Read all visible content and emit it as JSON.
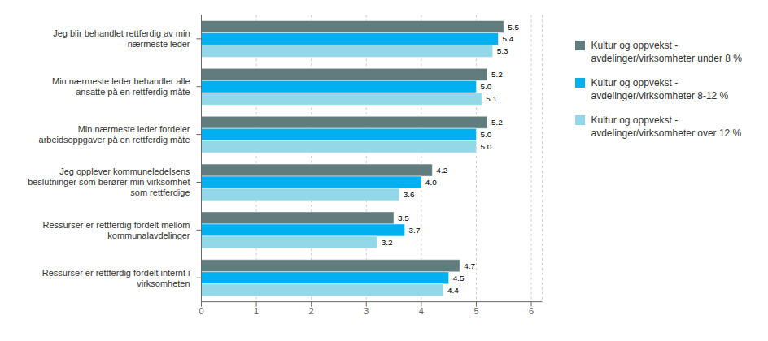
{
  "chart_data": {
    "type": "bar",
    "orientation": "horizontal",
    "categories": [
      "Jeg blir behandlet rettferdig av min\nnærmeste leder",
      "Min nærmeste leder behandler alle\nansatte på en rettferdig måte",
      "Min nærmeste leder fordeler\narbeidsoppgaver på en rettferdig måte",
      "Jeg opplever kommuneledelsens\nbeslutninger som berører min virksomhet\nsom rettferdige",
      "Ressurser er rettferdig fordelt mellom\nkommunalavdelinger",
      "Ressurser er rettferdig fordelt internt i\nvirksomheten"
    ],
    "series": [
      {
        "name": "Kultur og oppvekst -\navdelinger/virksomheter under 8 %",
        "color": "#607c7c",
        "values": [
          5.5,
          5.2,
          5.2,
          4.2,
          3.5,
          4.7
        ],
        "value_labels": [
          "5.5",
          "5.2",
          "5.2",
          "4.2",
          "3.5",
          "4.7"
        ]
      },
      {
        "name": "Kultur og oppvekst -\navdelinger/virksomheter 8-12 %",
        "color": "#00b0f0",
        "values": [
          5.4,
          5.0,
          5.0,
          4.0,
          3.7,
          4.5
        ],
        "value_labels": [
          "5.4",
          "5.0",
          "5.0",
          "4.0",
          "3.7",
          "4.5"
        ]
      },
      {
        "name": "Kultur og oppvekst -\navdelinger/virksomheter over 12 %",
        "color": "#92d8e8",
        "values": [
          5.3,
          5.1,
          5.0,
          3.6,
          3.2,
          4.4
        ],
        "value_labels": [
          "5.3",
          "5.1",
          "5.0",
          "3.6",
          "3.2",
          "4.4"
        ]
      }
    ],
    "xlim": [
      0,
      6.2
    ],
    "xticks": [
      0,
      1,
      2,
      3,
      4,
      5,
      6
    ],
    "grid": true,
    "legend": "right",
    "data_labels": true
  }
}
